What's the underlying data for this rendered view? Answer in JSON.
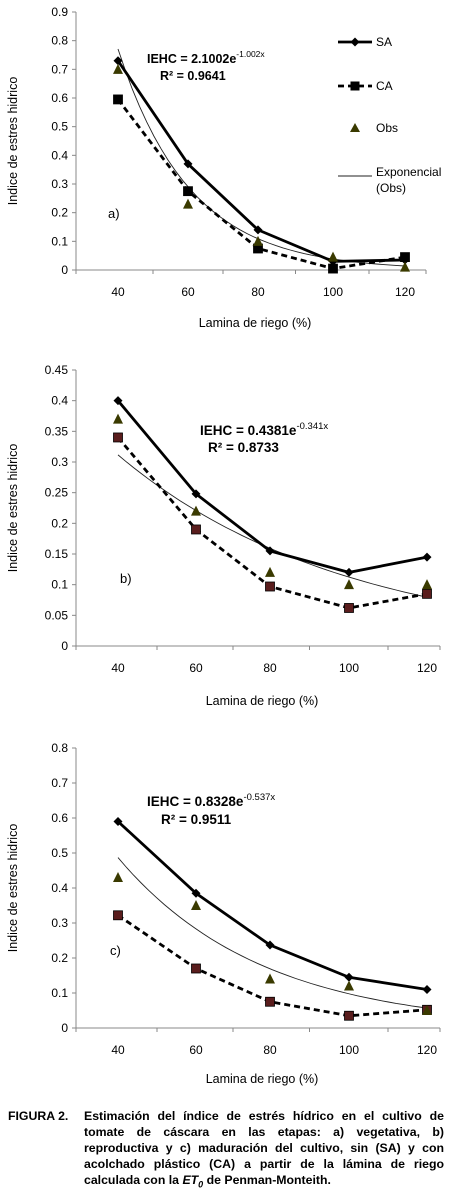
{
  "chart_data": [
    {
      "type": "line",
      "panel_label": "a)",
      "categories": [
        40,
        60,
        80,
        100,
        120
      ],
      "xlabel": "Lamina de riego (%)",
      "ylabel": "Indice de estres hidrico",
      "ylim": [
        0,
        0.9
      ],
      "yticks": [
        "0",
        "0.1",
        "0.2",
        "0.3",
        "0.4",
        "0.5",
        "0.6",
        "0.7",
        "0.8",
        "0.9"
      ],
      "grid": false,
      "legend_position": "right",
      "equation": {
        "prefix": "IEHC = 2.1002e",
        "exponent": "-1.002x",
        "r2": "R² = 0.9641",
        "a": 2.1002,
        "b": -1.002
      },
      "series": [
        {
          "name": "SA",
          "values": [
            0.73,
            0.37,
            0.14,
            0.03,
            0.035
          ],
          "style": "solid-diamond"
        },
        {
          "name": "CA",
          "values": [
            0.595,
            0.275,
            0.075,
            0.005,
            0.045
          ],
          "style": "dashed-square"
        },
        {
          "name": "Obs",
          "values": [
            0.7,
            0.23,
            0.1,
            0.045,
            0.01
          ],
          "style": "triangle"
        }
      ],
      "trend_legend_lines": [
        "Exponencial",
        "(Obs)"
      ]
    },
    {
      "type": "line",
      "panel_label": "b)",
      "categories": [
        40,
        60,
        80,
        100,
        120
      ],
      "xlabel": "Lamina de riego (%)",
      "ylabel": "Indice de estres hidrico",
      "ylim": [
        0,
        0.45
      ],
      "yticks": [
        "0",
        "0.05",
        "0.1",
        "0.15",
        "0.2",
        "0.25",
        "0.3",
        "0.35",
        "0.4",
        "0.45"
      ],
      "grid": false,
      "equation": {
        "prefix": "IEHC = 0.4381e",
        "exponent": "-0.341x",
        "r2": "R² = 0.8733",
        "a": 0.4381,
        "b": -0.341
      },
      "series": [
        {
          "name": "SA",
          "values": [
            0.4,
            0.248,
            0.155,
            0.12,
            0.145
          ],
          "style": "solid-diamond"
        },
        {
          "name": "CA",
          "values": [
            0.34,
            0.19,
            0.097,
            0.062,
            0.085
          ],
          "style": "dashed-square"
        },
        {
          "name": "Obs",
          "values": [
            0.37,
            0.22,
            0.12,
            0.1,
            0.1
          ],
          "style": "triangle"
        }
      ]
    },
    {
      "type": "line",
      "panel_label": "c)",
      "categories": [
        40,
        60,
        80,
        100,
        120
      ],
      "xlabel": "Lamina de riego (%)",
      "ylabel": "Indice de estres hidrico",
      "ylim": [
        0,
        0.8
      ],
      "yticks": [
        "0",
        "0.1",
        "0.2",
        "0.3",
        "0.4",
        "0.5",
        "0.6",
        "0.7",
        "0.8"
      ],
      "grid": false,
      "equation": {
        "prefix": "IEHC = 0.8328e",
        "exponent": "-0.537x",
        "r2": "R² = 0.9511",
        "a": 0.8328,
        "b": -0.537
      },
      "series": [
        {
          "name": "SA",
          "values": [
            0.59,
            0.385,
            0.237,
            0.145,
            0.11
          ],
          "style": "solid-diamond"
        },
        {
          "name": "CA",
          "values": [
            0.322,
            0.17,
            0.075,
            0.035,
            0.052
          ],
          "style": "dashed-square"
        },
        {
          "name": "Obs",
          "values": [
            0.43,
            0.35,
            0.14,
            0.12,
            0.05
          ],
          "style": "triangle"
        }
      ]
    }
  ],
  "caption": {
    "label": "FIGURA 2.",
    "text_before": "Estimación del índice de estrés hídrico en el cultivo de tomate de cáscara en las etapas: a) vegetativa, b) reproductiva y c) maduración del cultivo, sin (SA) y con acolchado plástico (CA) a partir de la lámina de riego calculada con la",
    "et_symbol": "ET",
    "et_subscript": "0",
    "text_after": "de Penman-Monteith."
  }
}
